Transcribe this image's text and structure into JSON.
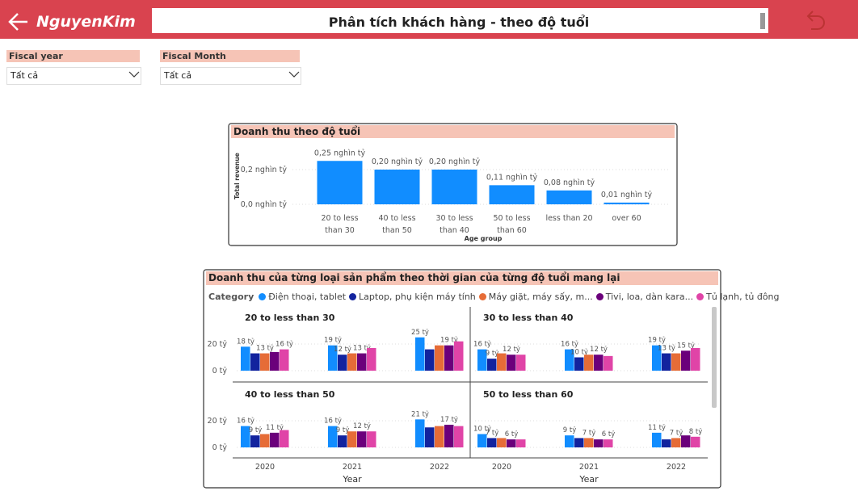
{
  "header": {
    "logo": "NguyenKim",
    "title": "Phân tích khách hàng - theo độ tuổi"
  },
  "filters": [
    {
      "label": "Fiscal year",
      "value": "Tất cả"
    },
    {
      "label": "Fiscal Month",
      "value": "Tất cả"
    }
  ],
  "chart_data": [
    {
      "type": "bar",
      "title": "Doanh thu theo độ tuổi",
      "y_label": "Total revenue",
      "x_label": "Age group",
      "categories": [
        "20 to less than 30",
        "40 to less than 50",
        "30 to less than 40",
        "50 to less than 60",
        "less than 20",
        "over 60"
      ],
      "values": [
        0.25,
        0.2,
        0.2,
        0.11,
        0.08,
        0.01
      ],
      "value_labels": [
        "0,25 nghìn tỷ",
        "0,20 nghìn tỷ",
        "0,20 nghìn tỷ",
        "0,11 nghìn tỷ",
        "0,08 nghìn tỷ",
        "0,01 nghìn tỷ"
      ],
      "color": "#118dff",
      "ylim": [
        0,
        0.3
      ],
      "yticks": [
        {
          "value": 0,
          "label": "0,0 nghìn tỷ"
        },
        {
          "value": 0.2,
          "label": "0,2 nghìn tỷ"
        }
      ],
      "grid": true
    },
    {
      "type": "grouped_bar_multiples",
      "title": "Doanh thu của từng loại sản phẩm theo thời gian của từng độ tuổi mang lại",
      "legend_title": "Category",
      "x_label": "Year",
      "categories": [
        "2020",
        "2021",
        "2022"
      ],
      "series": [
        {
          "name": "Điện thoại, tablet",
          "color": "#118dff"
        },
        {
          "name": "Laptop, phụ kiện máy tính",
          "color": "#12239e"
        },
        {
          "name": "Máy giặt, máy sấy, m...",
          "color": "#e66c37"
        },
        {
          "name": "Tivi, loa, dàn kara...",
          "color": "#6b007b"
        },
        {
          "name": "Tủ lạnh, tủ đông",
          "color": "#e044a7"
        }
      ],
      "ylim": [
        0,
        30
      ],
      "yticks": [
        {
          "value": 0,
          "label": "0 tỷ"
        },
        {
          "value": 20,
          "label": "20 tỷ"
        }
      ],
      "grid": true,
      "panels": [
        {
          "title": "20 to less than 30",
          "series": [
            {
              "values": [
                18,
                19,
                25
              ],
              "value_labels": [
                "18 tỷ",
                "19 tỷ",
                "25 tỷ"
              ]
            },
            {
              "values": [
                13,
                12,
                16
              ],
              "value_labels": [
                null,
                "12 tỷ",
                null
              ]
            },
            {
              "values": [
                13,
                13,
                19
              ],
              "value_labels": [
                "13 tỷ",
                null,
                null
              ]
            },
            {
              "values": [
                14,
                13,
                19
              ],
              "value_labels": [
                null,
                "13 tỷ",
                "19 tỷ"
              ]
            },
            {
              "values": [
                16,
                17,
                22
              ],
              "value_labels": [
                "16 tỷ",
                null,
                null
              ]
            }
          ]
        },
        {
          "title": "30 to less than 40",
          "series": [
            {
              "values": [
                16,
                16,
                19
              ],
              "value_labels": [
                "16 tỷ",
                "16 tỷ",
                "19 tỷ"
              ]
            },
            {
              "values": [
                9,
                10,
                13
              ],
              "value_labels": [
                "9 tỷ",
                "10 tỷ",
                "13 tỷ"
              ]
            },
            {
              "values": [
                13,
                12,
                13
              ],
              "value_labels": [
                null,
                null,
                null
              ]
            },
            {
              "values": [
                12,
                12,
                15
              ],
              "value_labels": [
                "12 tỷ",
                "12 tỷ",
                "15 tỷ"
              ]
            },
            {
              "values": [
                12,
                11,
                17
              ],
              "value_labels": [
                null,
                null,
                null
              ]
            }
          ]
        },
        {
          "title": "40 to less than 50",
          "series": [
            {
              "values": [
                16,
                16,
                21
              ],
              "value_labels": [
                "16 tỷ",
                "16 tỷ",
                "21 tỷ"
              ]
            },
            {
              "values": [
                9,
                9,
                15
              ],
              "value_labels": [
                "9 tỷ",
                "9 tỷ",
                null
              ]
            },
            {
              "values": [
                10,
                12,
                16
              ],
              "value_labels": [
                null,
                null,
                null
              ]
            },
            {
              "values": [
                11,
                12,
                17
              ],
              "value_labels": [
                "11 tỷ",
                "12 tỷ",
                "17 tỷ"
              ]
            },
            {
              "values": [
                13,
                12,
                16
              ],
              "value_labels": [
                null,
                null,
                null
              ]
            }
          ]
        },
        {
          "title": "50 to less than 60",
          "series": [
            {
              "values": [
                10,
                9,
                11
              ],
              "value_labels": [
                "10 tỷ",
                "9 tỷ",
                "11 tỷ"
              ]
            },
            {
              "values": [
                7,
                7,
                6
              ],
              "value_labels": [
                "7 tỷ",
                null,
                null
              ]
            },
            {
              "values": [
                7,
                7,
                7
              ],
              "value_labels": [
                null,
                "7 tỷ",
                "7 tỷ"
              ]
            },
            {
              "values": [
                6,
                6,
                9
              ],
              "value_labels": [
                "6 tỷ",
                null,
                null
              ]
            },
            {
              "values": [
                6,
                6,
                8
              ],
              "value_labels": [
                null,
                "6 tỷ",
                "8 tỷ"
              ]
            }
          ]
        }
      ]
    }
  ]
}
